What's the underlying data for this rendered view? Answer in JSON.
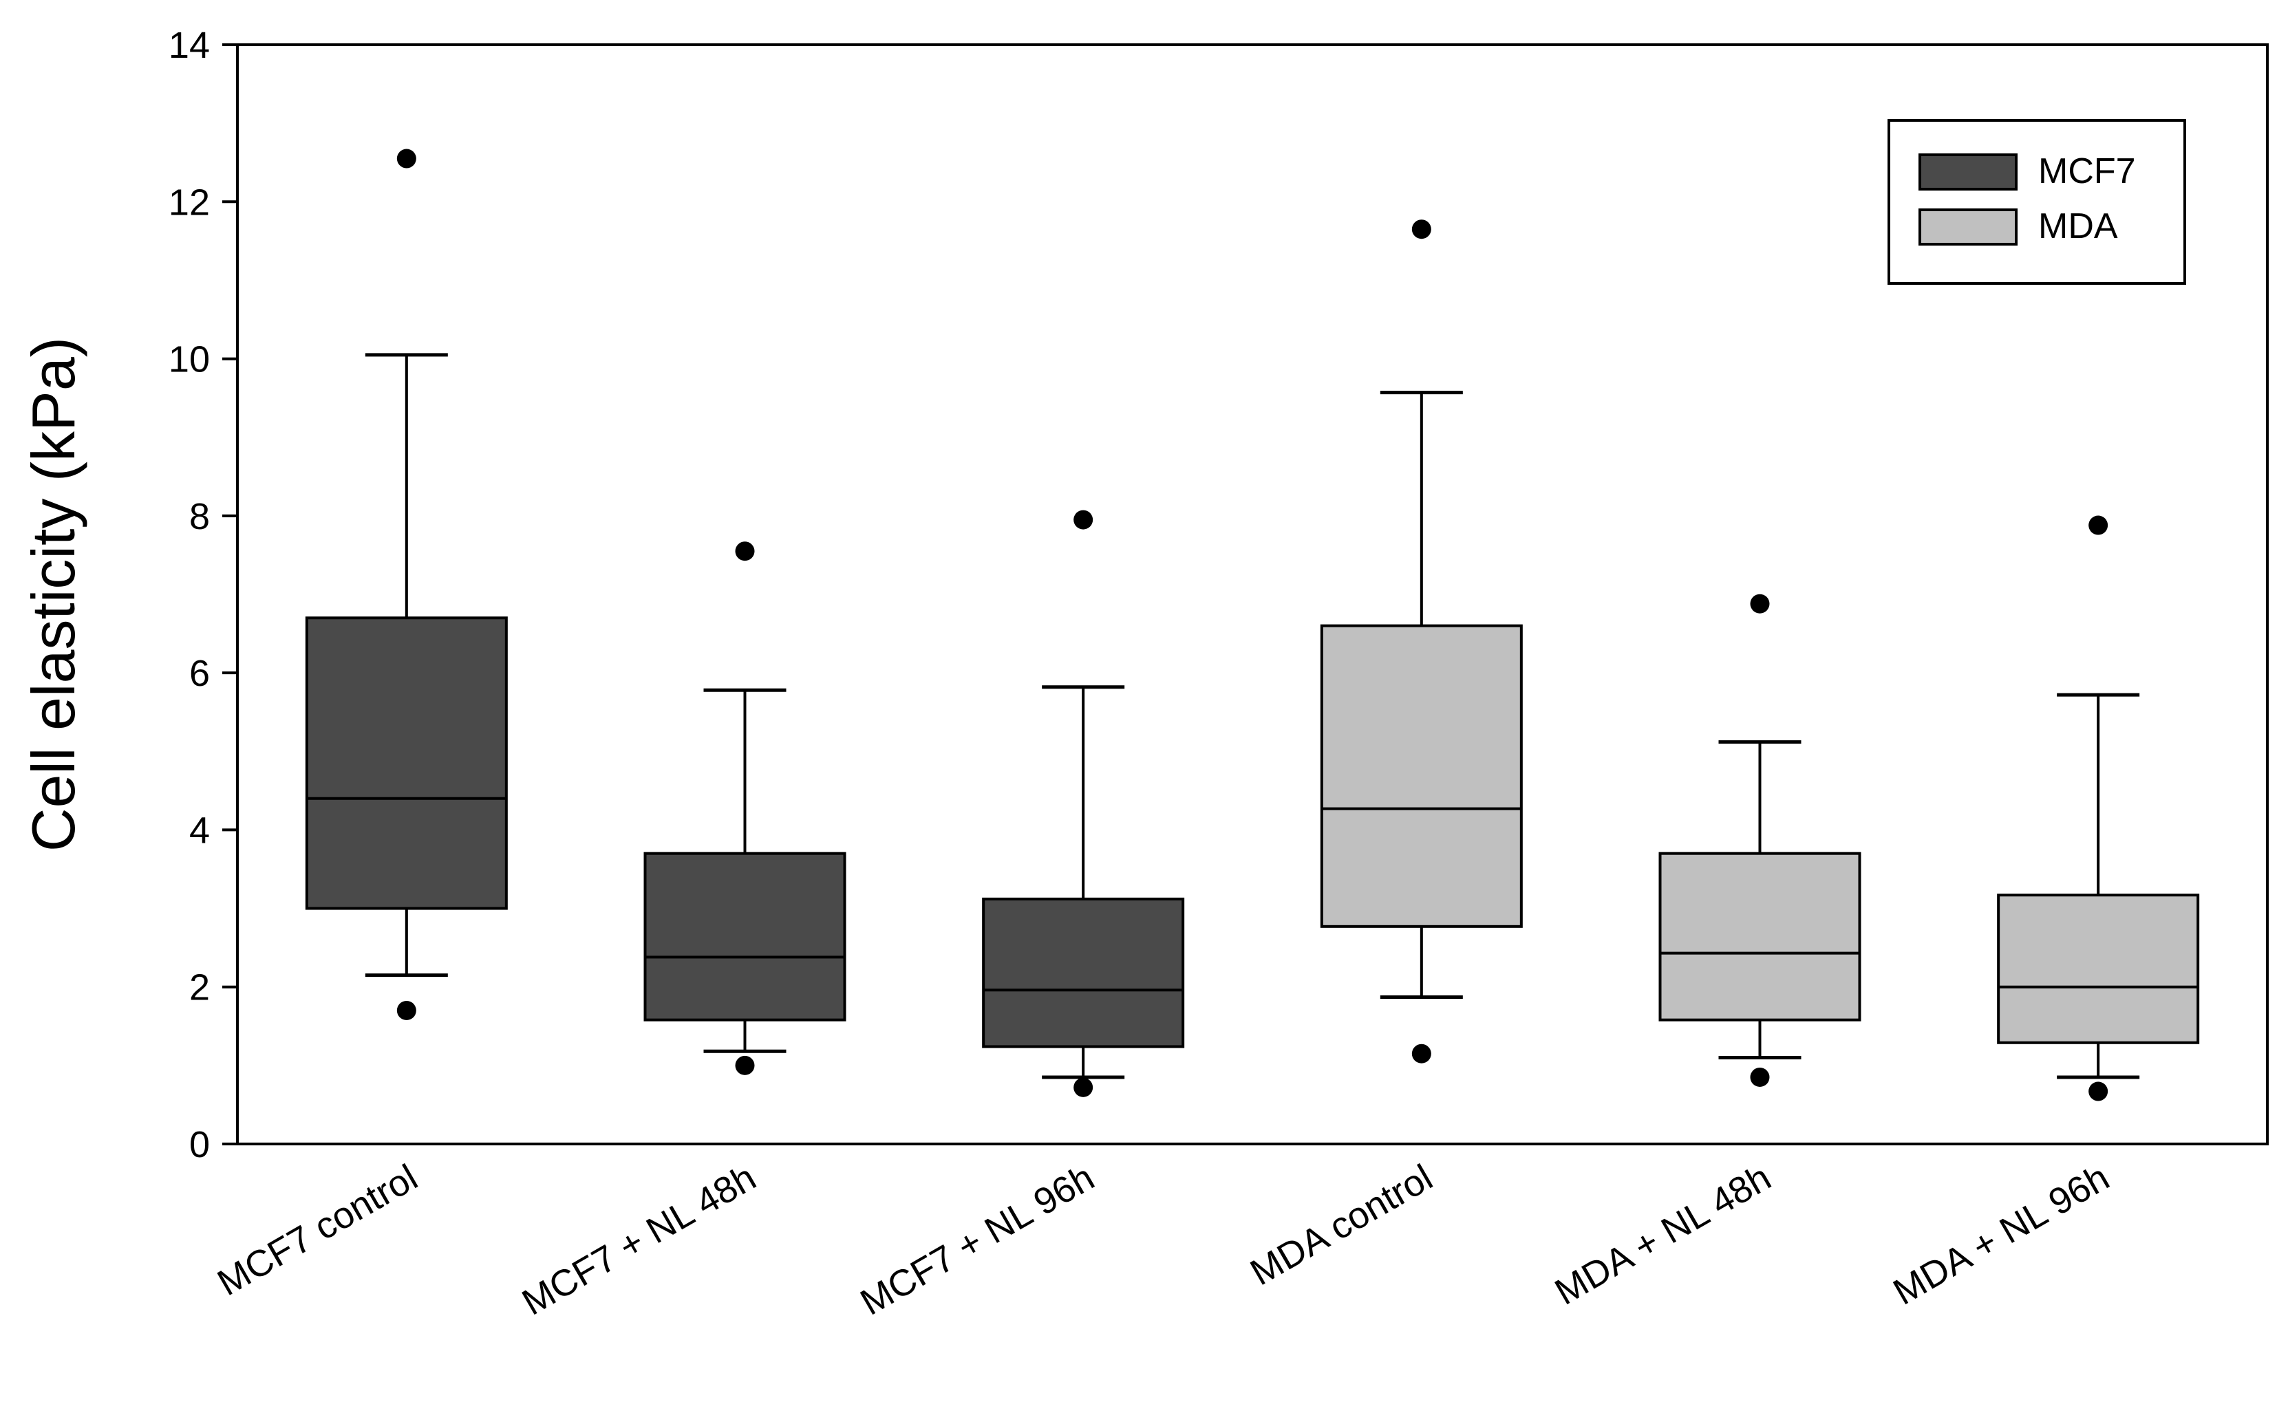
{
  "chart_data": {
    "type": "box",
    "title": "",
    "xlabel": "",
    "ylabel": "Cell elasticity (kPa)",
    "ylim": [
      0,
      14
    ],
    "yticks": [
      0,
      2,
      4,
      6,
      8,
      10,
      12,
      14
    ],
    "ytick_labels": [
      "0",
      "2",
      "4",
      "6",
      "8",
      "10",
      "12",
      "14"
    ],
    "categories": [
      "MCF7 control",
      "MCF7 + NL 48h",
      "MCF7 + NL 96h",
      "MDA control",
      "MDA + NL 48h",
      "MDA + NL 96h"
    ],
    "legend": {
      "position": "top-right",
      "entries": [
        {
          "name": "MCF7",
          "color": "#4a4a4a"
        },
        {
          "name": "MDA",
          "color": "#c0c0c0"
        }
      ]
    },
    "boxes": [
      {
        "category": "MCF7 control",
        "group": "MCF7",
        "whisker_low": 2.15,
        "q1": 3.0,
        "median": 4.4,
        "q3": 6.7,
        "whisker_high": 10.05,
        "outliers": [
          12.55,
          1.7
        ]
      },
      {
        "category": "MCF7 + NL 48h",
        "group": "MCF7",
        "whisker_low": 1.18,
        "q1": 1.58,
        "median": 2.38,
        "q3": 3.7,
        "whisker_high": 5.78,
        "outliers": [
          7.55,
          1.0
        ]
      },
      {
        "category": "MCF7 + NL 96h",
        "group": "MCF7",
        "whisker_low": 0.85,
        "q1": 1.24,
        "median": 1.96,
        "q3": 3.12,
        "whisker_high": 5.82,
        "outliers": [
          7.95,
          0.72
        ]
      },
      {
        "category": "MDA control",
        "group": "MDA",
        "whisker_low": 1.87,
        "q1": 2.77,
        "median": 4.27,
        "q3": 6.6,
        "whisker_high": 9.57,
        "outliers": [
          11.65,
          1.15
        ]
      },
      {
        "category": "MDA + NL 48h",
        "group": "MDA",
        "whisker_low": 1.1,
        "q1": 1.58,
        "median": 2.43,
        "q3": 3.7,
        "whisker_high": 5.12,
        "outliers": [
          6.88,
          0.85
        ]
      },
      {
        "category": "MDA + NL 96h",
        "group": "MDA",
        "whisker_low": 0.85,
        "q1": 1.29,
        "median": 2.0,
        "q3": 3.17,
        "whisker_high": 5.72,
        "outliers": [
          7.88,
          0.67
        ]
      }
    ],
    "colors": {
      "MCF7": "#4a4a4a",
      "MDA": "#c0c0c0",
      "axis": "#000000"
    }
  }
}
